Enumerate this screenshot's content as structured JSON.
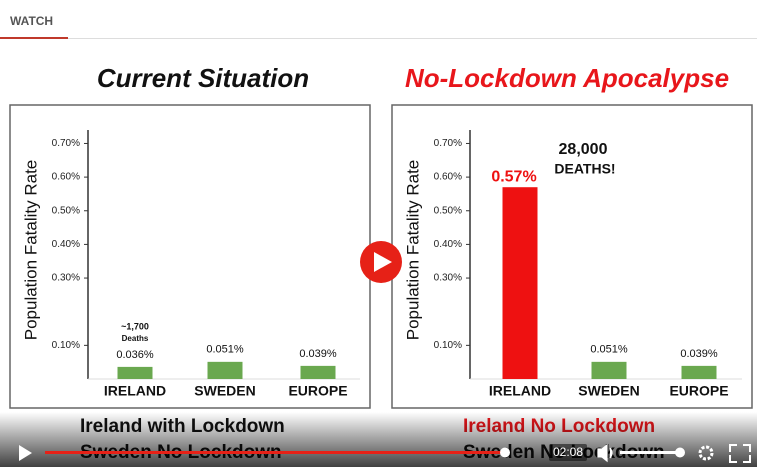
{
  "header": {
    "tab": "WATCH"
  },
  "chart_data": [
    {
      "type": "bar",
      "title": "Current Situation",
      "title_color": "#111111",
      "ylabel": "Population Fatality Rate",
      "categories": [
        "IRELAND",
        "SWEDEN",
        "EUROPE"
      ],
      "values": [
        0.036,
        0.051,
        0.039
      ],
      "value_labels": [
        "0.036%",
        "0.051%",
        "0.039%"
      ],
      "colors": [
        "#6aa84f",
        "#6aa84f",
        "#6aa84f"
      ],
      "ylim": [
        0,
        0.74
      ],
      "yticks": [
        {
          "value": 0.1,
          "label": "0.10%"
        },
        {
          "value": 0.3,
          "label": "0.30%"
        },
        {
          "value": 0.4,
          "label": "0.40%"
        },
        {
          "value": 0.5,
          "label": "0.50%"
        },
        {
          "value": 0.6,
          "label": "0.60%"
        },
        {
          "value": 0.7,
          "label": "0.70%"
        }
      ],
      "annotations": [
        "~1,700",
        "Deaths"
      ],
      "caption": [
        "Ireland with Lockdown",
        "Sweden No Lockdown"
      ]
    },
    {
      "type": "bar",
      "title": "No-Lockdown Apocalypse",
      "title_color": "#e8161b",
      "ylabel": "Population Fatality Rate",
      "categories": [
        "IRELAND",
        "SWEDEN",
        "EUROPE"
      ],
      "values": [
        0.57,
        0.051,
        0.039
      ],
      "value_labels": [
        "0.57%",
        "0.051%",
        "0.039%"
      ],
      "colors": [
        "#ee1111",
        "#6aa84f",
        "#6aa84f"
      ],
      "ylim": [
        0,
        0.74
      ],
      "yticks": [
        {
          "value": 0.1,
          "label": "0.10%"
        },
        {
          "value": 0.3,
          "label": "0.30%"
        },
        {
          "value": 0.4,
          "label": "0.40%"
        },
        {
          "value": 0.5,
          "label": "0.50%"
        },
        {
          "value": 0.6,
          "label": "0.60%"
        },
        {
          "value": 0.7,
          "label": "0.70%"
        }
      ],
      "annotations": [
        "28,000",
        "DEATHS!"
      ],
      "caption": [
        "Ireland No Lockdown",
        "Sweden No Lockdown"
      ]
    }
  ],
  "player": {
    "time": "02:08"
  }
}
